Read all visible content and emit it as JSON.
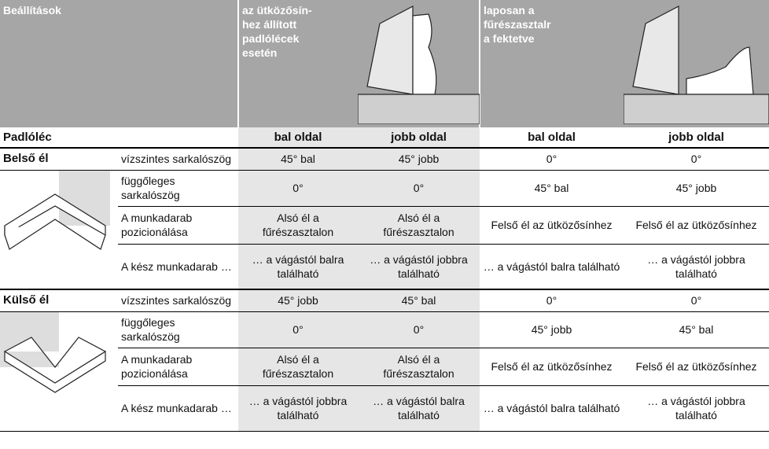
{
  "header": {
    "title": "Beállítások",
    "col_a": [
      "az ütközősín-",
      "hez állított",
      "padlólécek",
      "esetén"
    ],
    "col_b": [
      "laposan a",
      "fűrészasztalr",
      "a fektetve"
    ]
  },
  "subheader": {
    "label": "Padlóléc",
    "sides": [
      "bal oldal",
      "jobb oldal",
      "bal oldal",
      "jobb oldal"
    ]
  },
  "sections": [
    {
      "name": "Belső él",
      "rows": [
        [
          "vízszintes sarkalószög",
          "45° bal",
          "45° jobb",
          "0°",
          "0°"
        ],
        [
          "függőleges sarkalószög",
          "0°",
          "0°",
          "45° bal",
          "45° jobb"
        ],
        [
          "A munkadarab pozicionálása",
          "Alsó él a fűrészasztalon",
          "Alsó él a fűrészasztalon",
          "Felső él az ütközősínhez",
          "Felső él az ütközősínhez"
        ],
        [
          "A kész munkadarab …",
          "… a vágástól balra található",
          "… a vágástól jobbra található",
          "… a vágástól balra található",
          "… a vágástól jobbra található"
        ]
      ]
    },
    {
      "name": "Külső él",
      "rows": [
        [
          "vízszintes sarkalószög",
          "45° jobb",
          "45° bal",
          "0°",
          "0°"
        ],
        [
          "függőleges sarkalószög",
          "0°",
          "0°",
          "45° jobb",
          "45° bal"
        ],
        [
          "A munkadarab pozicionálása",
          "Alsó él a fűrészasztalon",
          "Alsó él a fűrészasztalon",
          "Felső él az ütközősínhez",
          "Felső él az ütközősínhez"
        ],
        [
          "A kész munkadarab …",
          "… a vágástól jobbra található",
          "… a vágástól balra található",
          "… a vágástól balra található",
          "… a vágástól jobbra található"
        ]
      ]
    }
  ]
}
